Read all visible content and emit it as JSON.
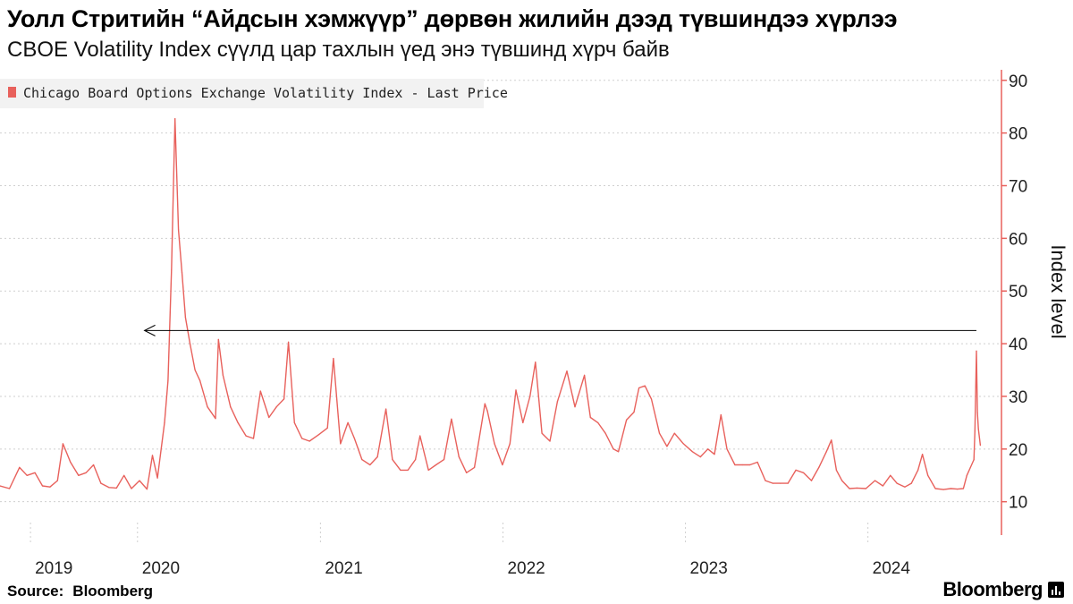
{
  "header": {
    "title": "Уолл Стритийн “Айдсын хэмжүүр” дөрвөн жилийн дээд түвшиндээ хүрлээ",
    "subtitle": "CBOE Volatility Index сүүлд цар тахлын үед энэ түвшинд хүрч байв"
  },
  "footer": {
    "source_label": "Source:",
    "source_value": "Bloomberg",
    "brand": "Bloomberg"
  },
  "colors": {
    "series": "#e8615c",
    "axis": "#e8615c",
    "grid": "#cfcfcf",
    "legend_bg": "#f2f2f2",
    "annotation": "#000000"
  },
  "chart_data": {
    "type": "line",
    "title": "",
    "xlabel": "",
    "ylabel": "Index level",
    "ylim": [
      4,
      92
    ],
    "y_ticks": [
      10,
      20,
      30,
      40,
      50,
      60,
      70,
      80,
      90
    ],
    "y_axis_side": "right",
    "grid": "horizontal dashed",
    "legend_position": "top-left",
    "x_tick_labels": [
      "2019",
      "2020",
      "2021",
      "2022",
      "2023",
      "2024"
    ],
    "x_tick_positions": [
      "2019-06-01",
      "2020-01-01",
      "2021-01-01",
      "2022-01-01",
      "2023-01-01",
      "2024-01-01"
    ],
    "x_range": [
      "2019-04-01",
      "2024-08-14"
    ],
    "annotation": {
      "type": "arrow",
      "from": [
        "2024-08-05",
        42.5
      ],
      "to": [
        "2020-01-15",
        42.5
      ]
    },
    "series": [
      {
        "name": "Chicago Board Options Exchange Volatility Index - Last Price",
        "x": [
          "2019-04-01",
          "2019-04-20",
          "2019-05-10",
          "2019-05-25",
          "2019-06-10",
          "2019-06-25",
          "2019-07-10",
          "2019-07-25",
          "2019-08-05",
          "2019-08-20",
          "2019-09-05",
          "2019-09-20",
          "2019-10-05",
          "2019-10-20",
          "2019-11-05",
          "2019-11-20",
          "2019-12-05",
          "2019-12-20",
          "2020-01-05",
          "2020-01-20",
          "2020-01-31",
          "2020-02-10",
          "2020-02-24",
          "2020-03-02",
          "2020-03-09",
          "2020-03-16",
          "2020-03-23",
          "2020-03-30",
          "2020-04-06",
          "2020-04-15",
          "2020-04-25",
          "2020-05-05",
          "2020-05-20",
          "2020-06-05",
          "2020-06-11",
          "2020-06-20",
          "2020-07-05",
          "2020-07-20",
          "2020-08-05",
          "2020-08-20",
          "2020-09-03",
          "2020-09-20",
          "2020-10-05",
          "2020-10-20",
          "2020-10-29",
          "2020-11-10",
          "2020-11-25",
          "2020-12-10",
          "2020-12-28",
          "2021-01-15",
          "2021-01-27",
          "2021-02-10",
          "2021-02-25",
          "2021-03-10",
          "2021-03-25",
          "2021-04-10",
          "2021-04-25",
          "2021-05-12",
          "2021-05-25",
          "2021-06-10",
          "2021-06-25",
          "2021-07-10",
          "2021-07-19",
          "2021-08-05",
          "2021-08-20",
          "2021-09-05",
          "2021-09-20",
          "2021-10-05",
          "2021-10-20",
          "2021-11-05",
          "2021-11-26",
          "2021-12-01",
          "2021-12-15",
          "2021-12-31",
          "2022-01-15",
          "2022-01-27",
          "2022-02-10",
          "2022-02-24",
          "2022-03-07",
          "2022-03-20",
          "2022-04-05",
          "2022-04-20",
          "2022-05-09",
          "2022-05-25",
          "2022-06-13",
          "2022-06-25",
          "2022-07-10",
          "2022-07-25",
          "2022-08-10",
          "2022-08-20",
          "2022-09-05",
          "2022-09-20",
          "2022-09-30",
          "2022-10-12",
          "2022-10-25",
          "2022-11-10",
          "2022-11-25",
          "2022-12-10",
          "2022-12-28",
          "2023-01-15",
          "2023-01-31",
          "2023-02-15",
          "2023-02-28",
          "2023-03-13",
          "2023-03-25",
          "2023-04-10",
          "2023-04-25",
          "2023-05-10",
          "2023-05-25",
          "2023-06-10",
          "2023-06-25",
          "2023-07-10",
          "2023-07-25",
          "2023-08-10",
          "2023-08-25",
          "2023-09-10",
          "2023-09-25",
          "2023-10-10",
          "2023-10-20",
          "2023-10-30",
          "2023-11-10",
          "2023-11-25",
          "2023-12-10",
          "2023-12-28",
          "2024-01-15",
          "2024-01-31",
          "2024-02-15",
          "2024-02-28",
          "2024-03-15",
          "2024-03-28",
          "2024-04-10",
          "2024-04-19",
          "2024-04-30",
          "2024-05-15",
          "2024-05-31",
          "2024-06-15",
          "2024-06-28",
          "2024-07-10",
          "2024-07-17",
          "2024-07-24",
          "2024-07-31",
          "2024-08-02",
          "2024-08-05",
          "2024-08-07",
          "2024-08-09",
          "2024-08-13"
        ],
        "values": [
          13.0,
          12.5,
          16.5,
          15.0,
          15.5,
          13.0,
          12.8,
          14.0,
          21.0,
          17.5,
          15.0,
          15.5,
          17.0,
          13.5,
          12.7,
          12.6,
          15.0,
          12.5,
          14.0,
          12.4,
          18.8,
          14.5,
          25.0,
          33.0,
          54.0,
          82.7,
          61.6,
          53.5,
          45.0,
          40.0,
          35.0,
          33.0,
          28.0,
          25.8,
          40.8,
          34.0,
          28.0,
          25.0,
          22.5,
          22.0,
          31.0,
          26.0,
          28.0,
          29.5,
          40.3,
          25.0,
          22.0,
          21.5,
          22.7,
          24.0,
          37.2,
          21.0,
          25.0,
          22.0,
          18.0,
          17.0,
          18.5,
          27.6,
          18.0,
          16.0,
          16.0,
          18.0,
          22.5,
          16.0,
          17.0,
          18.0,
          25.7,
          18.5,
          15.5,
          16.5,
          28.6,
          27.2,
          21.0,
          17.0,
          21.0,
          31.2,
          25.0,
          30.0,
          36.5,
          23.0,
          21.5,
          29.0,
          34.8,
          28.0,
          34.0,
          26.0,
          25.0,
          23.0,
          20.0,
          19.5,
          25.5,
          27.0,
          31.6,
          32.0,
          29.5,
          23.0,
          20.5,
          23.0,
          21.0,
          19.5,
          18.5,
          20.0,
          19.0,
          26.5,
          20.0,
          17.0,
          17.0,
          17.0,
          17.5,
          14.0,
          13.5,
          13.5,
          13.5,
          16.0,
          15.5,
          14.0,
          16.5,
          19.5,
          21.7,
          16.0,
          14.0,
          12.5,
          12.6,
          12.5,
          14.0,
          13.0,
          15.0,
          13.5,
          12.8,
          13.5,
          16.0,
          19.0,
          15.0,
          12.5,
          12.3,
          12.5,
          12.4,
          12.5,
          15.0,
          16.5,
          18.0,
          23.4,
          38.6,
          26.9,
          23.8,
          20.7
        ]
      }
    ]
  }
}
